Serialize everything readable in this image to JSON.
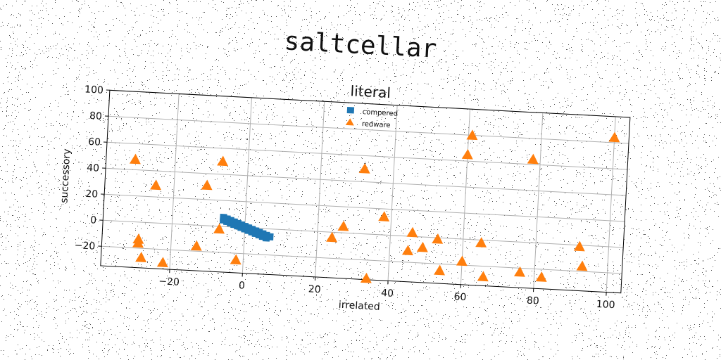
{
  "chart_data": {
    "type": "scatter",
    "suptitle": "saltcellar",
    "title": "literal",
    "xlabel": "irrelated",
    "ylabel": "successory",
    "xlim": [
      -39,
      104
    ],
    "ylim": [
      -35,
      100
    ],
    "xticks": [
      -20,
      0,
      20,
      40,
      60,
      80,
      100
    ],
    "yticks": [
      -20,
      0,
      20,
      40,
      60,
      80,
      100
    ],
    "grid": true,
    "legend_position": "top-center",
    "series": [
      {
        "name": "compered",
        "marker": "square",
        "color": "#1f77b4",
        "points": [
          [
            -6,
            7
          ],
          [
            -5,
            6
          ],
          [
            -4,
            5
          ],
          [
            -3,
            4
          ],
          [
            -2,
            3
          ],
          [
            -1,
            2
          ],
          [
            0,
            1
          ],
          [
            1,
            0
          ],
          [
            2,
            -1
          ],
          [
            3,
            -2
          ],
          [
            4,
            -3
          ],
          [
            5,
            -4
          ],
          [
            6,
            -5
          ],
          [
            7,
            -6
          ],
          [
            -6,
            5
          ],
          [
            -5,
            4
          ],
          [
            -4,
            3
          ],
          [
            -3,
            2
          ],
          [
            -2,
            1
          ],
          [
            -1,
            0
          ],
          [
            0,
            -1
          ],
          [
            1,
            -2
          ],
          [
            2,
            -3
          ],
          [
            3,
            -4
          ],
          [
            4,
            -5
          ],
          [
            5,
            -6
          ],
          [
            6,
            -7
          ]
        ]
      },
      {
        "name": "redware",
        "marker": "triangle",
        "color": "#ff7f0e",
        "points": [
          [
            -31,
            48
          ],
          [
            -25,
            29
          ],
          [
            -29,
            -13
          ],
          [
            -29,
            -16
          ],
          [
            -28,
            -27
          ],
          [
            -22,
            -30
          ],
          [
            -13,
            -16
          ],
          [
            -11,
            31
          ],
          [
            -7,
            50
          ],
          [
            -7,
            -2
          ],
          [
            -2,
            -25
          ],
          [
            24,
            -4
          ],
          [
            27,
            5
          ],
          [
            32,
            50
          ],
          [
            34,
            -34
          ],
          [
            38,
            14
          ],
          [
            45,
            -11
          ],
          [
            46,
            3
          ],
          [
            49,
            -8
          ],
          [
            53,
            -1
          ],
          [
            54,
            -25
          ],
          [
            60,
            -17
          ],
          [
            60,
            65
          ],
          [
            61,
            80
          ],
          [
            65,
            -2
          ],
          [
            66,
            -28
          ],
          [
            76,
            -23
          ],
          [
            78,
            64
          ],
          [
            82,
            -26
          ],
          [
            92,
            -1
          ],
          [
            93,
            -16
          ],
          [
            100,
            84
          ]
        ]
      }
    ]
  },
  "colors": {
    "background": "#ffffff",
    "grid": "#b0b0b0",
    "axes": "#000000"
  }
}
